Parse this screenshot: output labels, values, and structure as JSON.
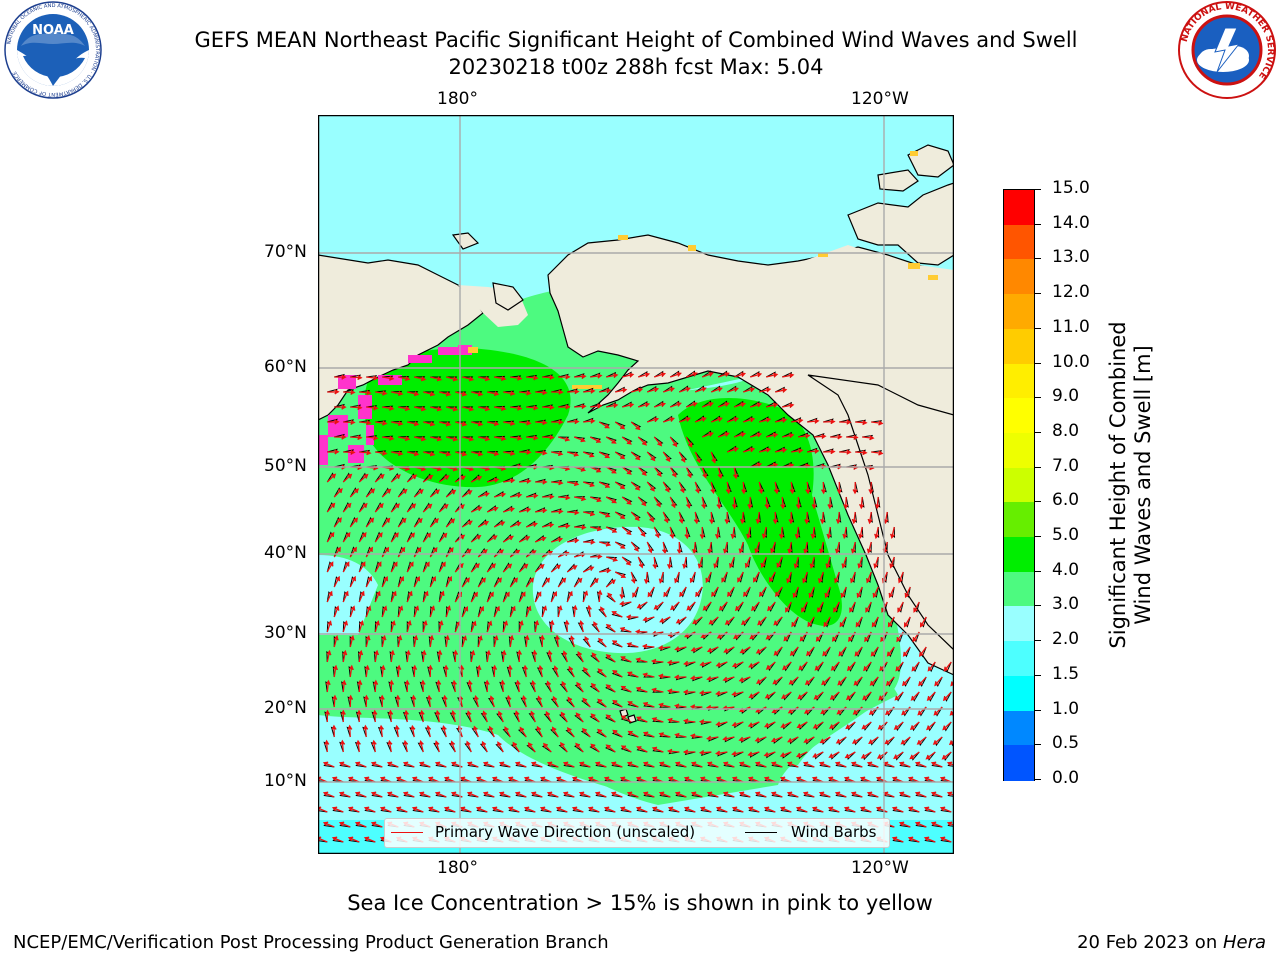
{
  "header": {
    "title_line1": "GEFS MEAN Northeast Pacific Significant Height of Combined Wind Waves and Swell",
    "title_line2": "20230218 t00z 288h fcst   Max: 5.04"
  },
  "logos": {
    "noaa": {
      "text": "NOAA",
      "ring_text": "NATIONAL OCEANIC AND ATMOSPHERIC ADMINISTRATION · U.S. DEPARTMENT OF COMMERCE"
    },
    "nws": {
      "ring_text": "NATIONAL WEATHER SERVICE"
    }
  },
  "map": {
    "lon_labels": [
      "180°",
      "120°W"
    ],
    "lat_labels": [
      "70°N",
      "60°N",
      "50°N",
      "40°N",
      "30°N",
      "20°N",
      "10°N"
    ],
    "colors": {
      "land": "#efecdc",
      "ocean_low": "#99ffff",
      "ocean_mid": "#4dfa80",
      "ocean_high": "#00ee00",
      "ice_pink": "#ff33cc",
      "wave_arrow": "#ee1111",
      "barb": "#000000"
    },
    "legend": {
      "wave_label": "Primary Wave Direction (unscaled)",
      "barb_label": "Wind Barbs"
    },
    "note": "Sea Ice Concentration > 15% is shown in pink to yellow"
  },
  "colorbar": {
    "label_line1": "Significant Height of Combined",
    "label_line2": "Wind Waves and Swell [m]",
    "ticks": [
      "15.0",
      "14.0",
      "13.0",
      "12.0",
      "11.0",
      "10.0",
      "9.0",
      "8.0",
      "7.0",
      "6.0",
      "5.0",
      "4.0",
      "3.0",
      "2.0",
      "1.5",
      "1.0",
      "0.5",
      "0.0"
    ],
    "colors": [
      "#ff0000",
      "#ff2200",
      "#ff5500",
      "#ff8800",
      "#ffaa00",
      "#ffcc00",
      "#ffee00",
      "#ffff00",
      "#eeff00",
      "#ccff00",
      "#66ee00",
      "#00ee00",
      "#4dfa80",
      "#99ffff",
      "#4dffff",
      "#00ffff",
      "#0088ff",
      "#0055ff",
      "#0000ff"
    ]
  },
  "footer": {
    "left": "NCEP/EMC/Verification Post Processing Product Generation Branch",
    "right_date": "20 Feb 2023 on ",
    "right_host": "Hera"
  }
}
